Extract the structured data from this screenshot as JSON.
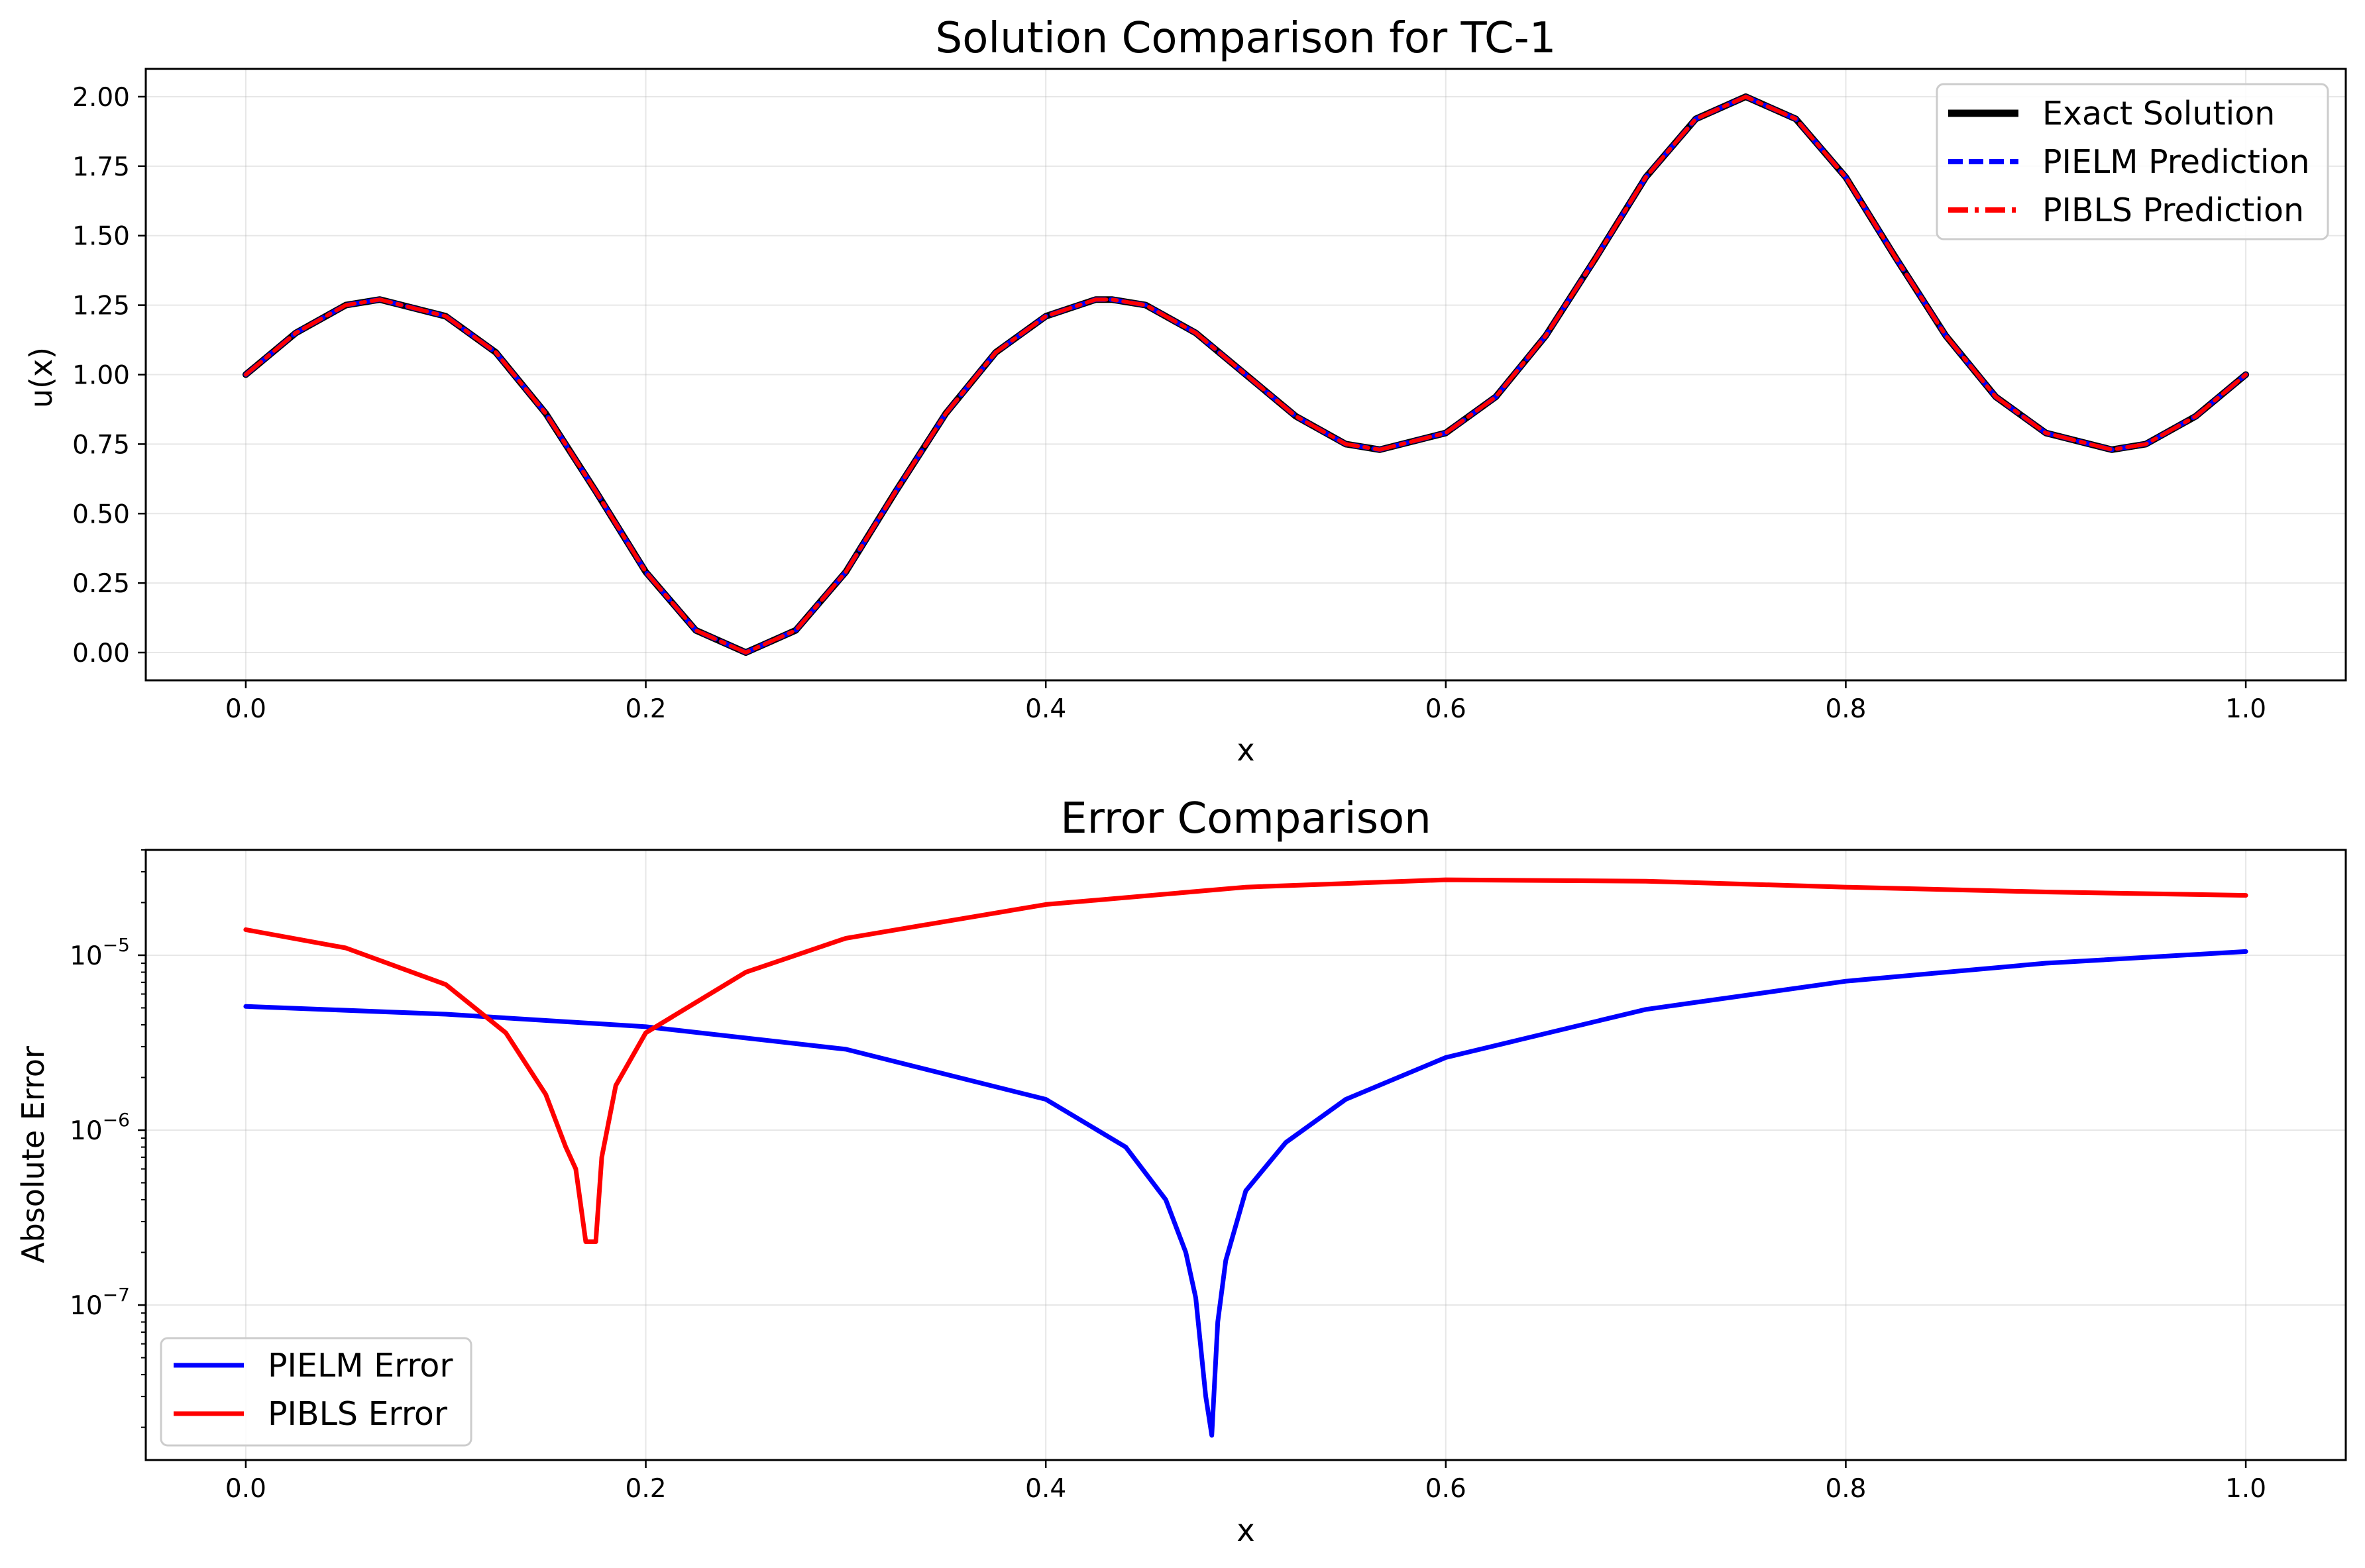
{
  "chart_data": [
    {
      "type": "line",
      "title": "Solution Comparison for TC-1",
      "xlabel": "x",
      "ylabel": "u(x)",
      "xlim": [
        -0.05,
        1.05
      ],
      "ylim": [
        -0.1,
        2.1
      ],
      "xticks": [
        "0.0",
        "0.2",
        "0.4",
        "0.6",
        "0.8",
        "1.0"
      ],
      "yticks": [
        "0.00",
        "0.25",
        "0.50",
        "0.75",
        "1.00",
        "1.25",
        "1.50",
        "1.75",
        "2.00"
      ],
      "grid": true,
      "legend_position": "top-right",
      "x": [
        0.0,
        0.025,
        0.05,
        0.067,
        0.1,
        0.125,
        0.15,
        0.175,
        0.2,
        0.225,
        0.25,
        0.275,
        0.3,
        0.325,
        0.35,
        0.375,
        0.4,
        0.425,
        0.433,
        0.45,
        0.475,
        0.5,
        0.525,
        0.55,
        0.567,
        0.6,
        0.625,
        0.65,
        0.675,
        0.7,
        0.725,
        0.75,
        0.775,
        0.8,
        0.825,
        0.85,
        0.875,
        0.9,
        0.933,
        0.95,
        0.975,
        1.0
      ],
      "series": [
        {
          "name": "Exact Solution",
          "color": "#000000",
          "style": "solid",
          "values": [
            1.0,
            1.15,
            1.25,
            1.27,
            1.21,
            1.08,
            0.86,
            0.58,
            0.29,
            0.08,
            0.0,
            0.08,
            0.29,
            0.58,
            0.86,
            1.08,
            1.21,
            1.27,
            1.27,
            1.25,
            1.15,
            1.0,
            0.85,
            0.75,
            0.73,
            0.79,
            0.92,
            1.14,
            1.42,
            1.71,
            1.92,
            2.0,
            1.92,
            1.71,
            1.42,
            1.14,
            0.92,
            0.79,
            0.73,
            0.75,
            0.85,
            1.0
          ]
        },
        {
          "name": "PIELM Prediction",
          "color": "#0000ff",
          "style": "dashed",
          "values": [
            1.0,
            1.15,
            1.25,
            1.27,
            1.21,
            1.08,
            0.86,
            0.58,
            0.29,
            0.08,
            0.0,
            0.08,
            0.29,
            0.58,
            0.86,
            1.08,
            1.21,
            1.27,
            1.27,
            1.25,
            1.15,
            1.0,
            0.85,
            0.75,
            0.73,
            0.79,
            0.92,
            1.14,
            1.42,
            1.71,
            1.92,
            2.0,
            1.92,
            1.71,
            1.42,
            1.14,
            0.92,
            0.79,
            0.73,
            0.75,
            0.85,
            1.0
          ]
        },
        {
          "name": "PIBLS Prediction",
          "color": "#ff0000",
          "style": "dashdot",
          "values": [
            1.0,
            1.15,
            1.25,
            1.27,
            1.21,
            1.08,
            0.86,
            0.58,
            0.29,
            0.08,
            0.0,
            0.08,
            0.29,
            0.58,
            0.86,
            1.08,
            1.21,
            1.27,
            1.27,
            1.25,
            1.15,
            1.0,
            0.85,
            0.75,
            0.73,
            0.79,
            0.92,
            1.14,
            1.42,
            1.71,
            1.92,
            2.0,
            1.92,
            1.71,
            1.42,
            1.14,
            0.92,
            0.79,
            0.73,
            0.75,
            0.85,
            1.0
          ]
        }
      ]
    },
    {
      "type": "line",
      "title": "Error Comparison",
      "xlabel": "x",
      "ylabel": "Absolute Error",
      "yscale": "log",
      "xlim": [
        -0.05,
        1.05
      ],
      "ylim": [
        1.3e-08,
        4e-05
      ],
      "xticks": [
        "0.0",
        "0.2",
        "0.4",
        "0.6",
        "0.8",
        "1.0"
      ],
      "yticks": [
        {
          "base": "10",
          "exp": "−5",
          "value": 1e-05
        },
        {
          "base": "10",
          "exp": "−6",
          "value": 1e-06
        },
        {
          "base": "10",
          "exp": "−7",
          "value": 1e-07
        }
      ],
      "grid": true,
      "legend_position": "bottom-left",
      "series": [
        {
          "name": "PIELM Error",
          "color": "#0000ff",
          "x": [
            0.0,
            0.1,
            0.2,
            0.3,
            0.4,
            0.44,
            0.46,
            0.47,
            0.475,
            0.48,
            0.483,
            0.486,
            0.49,
            0.5,
            0.52,
            0.55,
            0.6,
            0.7,
            0.8,
            0.9,
            1.0
          ],
          "values": [
            5.1e-06,
            4.6e-06,
            3.9e-06,
            2.9e-06,
            1.5e-06,
            8e-07,
            4e-07,
            2e-07,
            1.1e-07,
            3e-08,
            1.8e-08,
            8e-08,
            1.8e-07,
            4.5e-07,
            8.5e-07,
            1.5e-06,
            2.6e-06,
            4.9e-06,
            7.1e-06,
            9e-06,
            1.05e-05
          ]
        },
        {
          "name": "PIBLS Error",
          "color": "#ff0000",
          "x": [
            0.0,
            0.05,
            0.1,
            0.13,
            0.15,
            0.16,
            0.165,
            0.17,
            0.175,
            0.178,
            0.185,
            0.2,
            0.25,
            0.3,
            0.4,
            0.5,
            0.6,
            0.7,
            0.8,
            0.9,
            1.0
          ],
          "values": [
            1.4e-05,
            1.1e-05,
            6.8e-06,
            3.6e-06,
            1.6e-06,
            8e-07,
            6e-07,
            2.3e-07,
            2.3e-07,
            7e-07,
            1.8e-06,
            3.6e-06,
            8e-06,
            1.25e-05,
            1.95e-05,
            2.45e-05,
            2.7e-05,
            2.65e-05,
            2.45e-05,
            2.3e-05,
            2.2e-05
          ]
        }
      ]
    }
  ]
}
